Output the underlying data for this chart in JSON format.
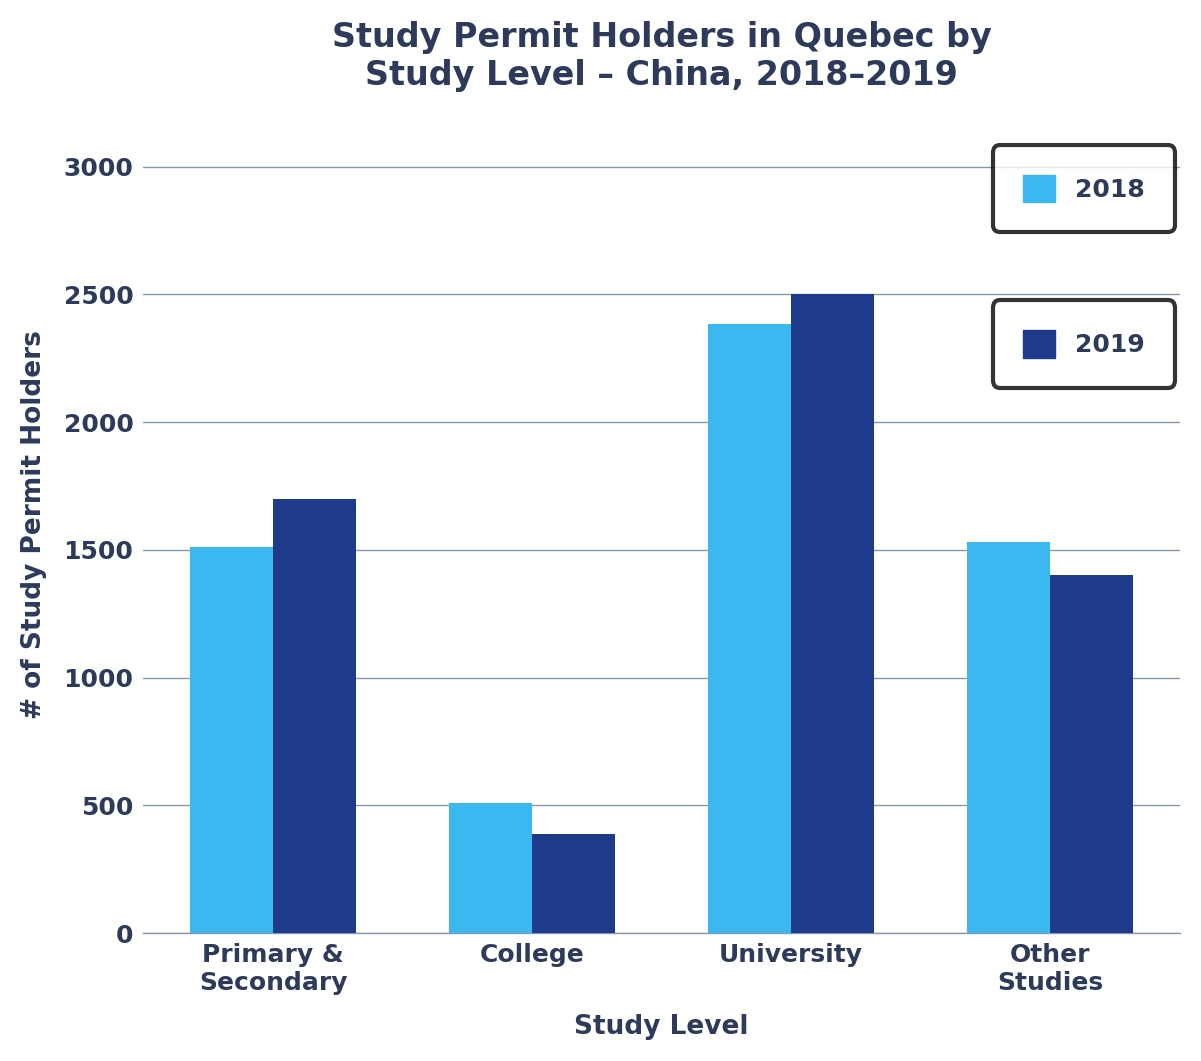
{
  "title": "Study Permit Holders in Quebec by\nStudy Level – China, 2018–2019",
  "xlabel": "Study Level",
  "ylabel": "# of Study Permit Holders",
  "categories": [
    "Primary &\nSecondary",
    "College",
    "University",
    "Other\nStudies"
  ],
  "values_2018": [
    1510,
    510,
    2385,
    1530
  ],
  "values_2019": [
    1700,
    390,
    2500,
    1400
  ],
  "color_2018": "#3BB8F0",
  "color_2019": "#1E3A8A",
  "ylim": [
    0,
    3200
  ],
  "yticks": [
    0,
    500,
    1000,
    1500,
    2000,
    2500,
    3000
  ],
  "title_fontsize": 24,
  "axis_label_fontsize": 19,
  "tick_fontsize": 18,
  "legend_fontsize": 18,
  "bar_width": 0.32,
  "background_color": "#ffffff",
  "grid_color": "#8899AA",
  "text_color": "#2D3A5A"
}
